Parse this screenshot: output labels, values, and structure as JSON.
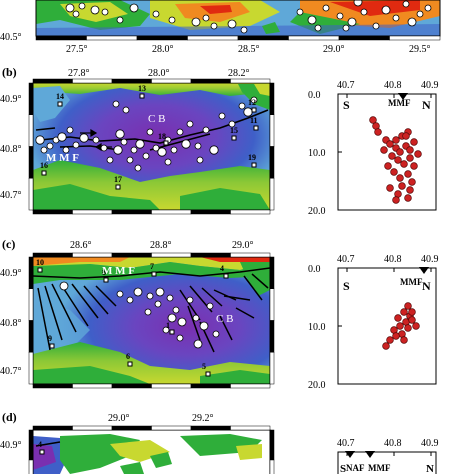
{
  "colors": {
    "sea_deep": "#7a2fb0",
    "sea_mid": "#3f5fc8",
    "sea_shallow": "#5fa8d8",
    "land_low": "#2fae3a",
    "land_mid": "#c8d830",
    "land_high": "#f08a20",
    "land_peak": "#e02a10",
    "quake_open": "#ffffff",
    "quake_red": "#cc2222"
  },
  "panel_a": {
    "lon_ticks": [
      "27.5°",
      "28.0°",
      "28.5°",
      "29.0°",
      "29.5°"
    ],
    "lat_tick": "40.5°"
  },
  "panel_b": {
    "label": "(b)",
    "lon_ticks": [
      "27.8°",
      "28.0°",
      "28.2°"
    ],
    "lat_ticks": [
      "40.9°",
      "40.8°",
      "40.7°"
    ],
    "basin_label": "C B",
    "fault_label": "M M F",
    "stations": [
      "14",
      "13",
      "12",
      "11",
      "18",
      "15",
      "16",
      "17",
      "19"
    ],
    "section": {
      "top_ticks": [
        "40.7",
        "40.8",
        "40.9"
      ],
      "depth_ticks": [
        "0.0",
        "10.0",
        "20.0"
      ],
      "left": "S",
      "right": "N",
      "fault": "MMF"
    }
  },
  "panel_c": {
    "label": "(c)",
    "lon_ticks": [
      "28.6°",
      "28.8°",
      "29.0°"
    ],
    "lat_ticks": [
      "40.9°",
      "40.8°",
      "40.7°"
    ],
    "basin_label": "C B",
    "fault_label": "M M F",
    "stations": [
      "10",
      "8",
      "7",
      "4",
      "9",
      "6",
      "5",
      "1"
    ],
    "section": {
      "top_ticks": [
        "40.7",
        "40.8",
        "40.9"
      ],
      "depth_ticks": [
        "0.0",
        "10.0",
        "20.0"
      ],
      "left": "S",
      "right": "N",
      "fault": "MMF"
    }
  },
  "panel_d": {
    "label": "(d)",
    "lon_ticks": [
      "29.0°",
      "29.2°"
    ],
    "lat_ticks": [
      "40.9°"
    ],
    "stations": [
      "4"
    ],
    "section": {
      "top_ticks": [
        "40.7",
        "40.8",
        "40.9"
      ],
      "left": "S",
      "right": "N",
      "faults": [
        "NAF",
        "MMF"
      ]
    }
  }
}
